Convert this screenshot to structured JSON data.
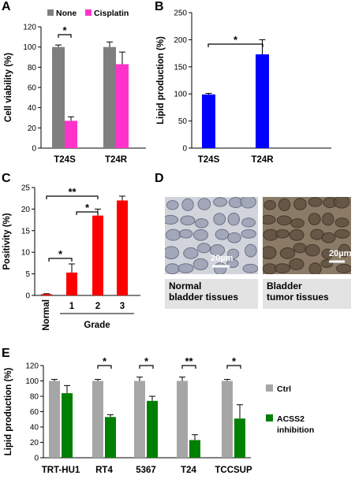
{
  "panels": {
    "a": "A",
    "b": "B",
    "c": "C",
    "d": "D",
    "e": "E"
  },
  "colors": {
    "none": "#7f7f7f",
    "cisplatin": "#ff33cc",
    "blue": "#0000ff",
    "red": "#ff0000",
    "ctrl": "#a6a6a6",
    "acss2": "#008000"
  },
  "panel_d": {
    "normal_scale": "20µm",
    "tumor_scale": "20µm",
    "normal_caption_1": "Normal",
    "normal_caption_2": "bladder tissues",
    "tumor_caption_1": "Bladder",
    "tumor_caption_2": "tumor tissues"
  },
  "chart_data": [
    {
      "id": "A",
      "type": "bar",
      "categories": [
        "T24S",
        "T24R"
      ],
      "series": [
        {
          "name": "None",
          "values": [
            100,
            100
          ],
          "errors": [
            2,
            5
          ]
        },
        {
          "name": "Cisplatin",
          "values": [
            27,
            83
          ],
          "errors": [
            4,
            12
          ]
        }
      ],
      "ylabel": "Cell viability (%)",
      "ylim": [
        0,
        120
      ],
      "yticks": [
        "0",
        "20",
        "40",
        "60",
        "80",
        "100",
        "120"
      ],
      "significance": [
        "*"
      ],
      "legend": "top"
    },
    {
      "id": "B",
      "type": "bar",
      "categories": [
        "T24S",
        "T24R"
      ],
      "values": [
        99,
        173
      ],
      "errors": [
        2,
        27
      ],
      "ylabel": "Lipid production (%)",
      "ylim": [
        0,
        250
      ],
      "yticks": [
        "0",
        "50",
        "100",
        "150",
        "200",
        "250"
      ],
      "significance": [
        "*"
      ]
    },
    {
      "id": "C",
      "type": "bar",
      "categories": [
        "Normal",
        "1",
        "2",
        "3"
      ],
      "values": [
        0.3,
        5.3,
        18.5,
        22
      ],
      "errors": [
        0.1,
        2,
        1.5,
        1
      ],
      "ylabel": "Positivity (%)",
      "xlabel": "Grade",
      "ylim": [
        0,
        25
      ],
      "yticks": [
        "0",
        "5",
        "10",
        "15",
        "20",
        "25"
      ],
      "significance": [
        "**",
        "*",
        "*"
      ]
    },
    {
      "id": "E",
      "type": "bar",
      "categories": [
        "TRT-HU1",
        "RT4",
        "5367",
        "T24",
        "TCCSUP"
      ],
      "series": [
        {
          "name": "Ctrl",
          "values": [
            100,
            100,
            100,
            100,
            100
          ],
          "errors": [
            2,
            2,
            5,
            5,
            2
          ]
        },
        {
          "name": "ACSS2 inhibition",
          "values": [
            84,
            53,
            74,
            23,
            51
          ],
          "errors": [
            10,
            3,
            6,
            7,
            18
          ]
        }
      ],
      "ylabel": "Lipid production (%)",
      "ylim": [
        0,
        120
      ],
      "yticks": [
        "0",
        "20",
        "40",
        "60",
        "80",
        "100",
        "120"
      ],
      "significance": [
        "*",
        "*",
        "**",
        "*"
      ],
      "legend": "right"
    }
  ]
}
